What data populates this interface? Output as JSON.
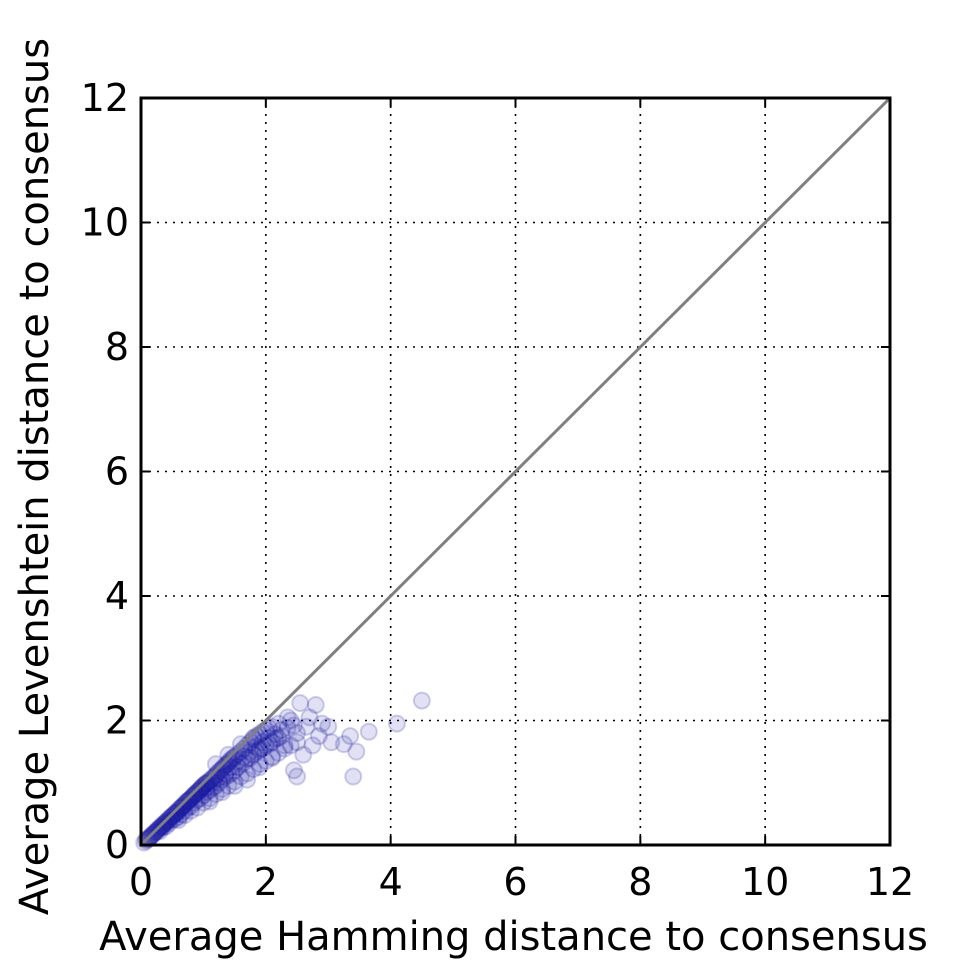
{
  "chart_data": {
    "type": "scatter",
    "title": "",
    "xlabel": "Average Hamming distance to consensus",
    "ylabel": "Average Levenshtein distance to consensus",
    "xlim": [
      0,
      12
    ],
    "ylim": [
      0,
      12
    ],
    "xticks": [
      0,
      2,
      4,
      6,
      8,
      10,
      12
    ],
    "yticks": [
      0,
      2,
      4,
      6,
      8,
      10,
      12
    ],
    "xtick_labels": [
      "0",
      "2",
      "4",
      "6",
      "8",
      "10",
      "12"
    ],
    "ytick_labels": [
      "0",
      "2",
      "4",
      "6",
      "8",
      "10",
      "12"
    ],
    "grid": true,
    "reference_line": {
      "from": [
        0,
        0
      ],
      "to": [
        12,
        12
      ],
      "color": "#808080"
    },
    "point_color": "#1a1aa6",
    "series": [
      {
        "points": [
          [
            0.05,
            0.04
          ],
          [
            0.08,
            0.07
          ],
          [
            0.1,
            0.09
          ],
          [
            0.12,
            0.1
          ],
          [
            0.14,
            0.12
          ],
          [
            0.15,
            0.13
          ],
          [
            0.17,
            0.15
          ],
          [
            0.18,
            0.16
          ],
          [
            0.2,
            0.18
          ],
          [
            0.22,
            0.2
          ],
          [
            0.24,
            0.21
          ],
          [
            0.25,
            0.22
          ],
          [
            0.27,
            0.25
          ],
          [
            0.28,
            0.26
          ],
          [
            0.3,
            0.27
          ],
          [
            0.32,
            0.3
          ],
          [
            0.33,
            0.3
          ],
          [
            0.35,
            0.32
          ],
          [
            0.37,
            0.34
          ],
          [
            0.38,
            0.35
          ],
          [
            0.4,
            0.37
          ],
          [
            0.42,
            0.38
          ],
          [
            0.43,
            0.4
          ],
          [
            0.45,
            0.41
          ],
          [
            0.47,
            0.44
          ],
          [
            0.48,
            0.45
          ],
          [
            0.5,
            0.46
          ],
          [
            0.52,
            0.48
          ],
          [
            0.54,
            0.5
          ],
          [
            0.55,
            0.51
          ],
          [
            0.57,
            0.52
          ],
          [
            0.58,
            0.54
          ],
          [
            0.6,
            0.55
          ],
          [
            0.62,
            0.58
          ],
          [
            0.64,
            0.6
          ],
          [
            0.65,
            0.6
          ],
          [
            0.67,
            0.62
          ],
          [
            0.68,
            0.64
          ],
          [
            0.7,
            0.65
          ],
          [
            0.72,
            0.68
          ],
          [
            0.74,
            0.7
          ],
          [
            0.75,
            0.7
          ],
          [
            0.77,
            0.72
          ],
          [
            0.78,
            0.73
          ],
          [
            0.8,
            0.75
          ],
          [
            0.82,
            0.77
          ],
          [
            0.84,
            0.79
          ],
          [
            0.85,
            0.8
          ],
          [
            0.87,
            0.82
          ],
          [
            0.88,
            0.83
          ],
          [
            0.9,
            0.85
          ],
          [
            0.92,
            0.87
          ],
          [
            0.94,
            0.88
          ],
          [
            0.95,
            0.9
          ],
          [
            0.97,
            0.92
          ],
          [
            0.98,
            0.93
          ],
          [
            1.0,
            0.95
          ],
          [
            1.02,
            0.97
          ],
          [
            1.04,
            0.98
          ],
          [
            1.05,
            1.0
          ],
          [
            1.07,
            1.0
          ],
          [
            1.1,
            1.03
          ],
          [
            1.12,
            1.05
          ],
          [
            1.15,
            1.08
          ],
          [
            1.18,
            1.1
          ],
          [
            1.2,
            1.12
          ],
          [
            1.22,
            1.15
          ],
          [
            1.25,
            1.18
          ],
          [
            1.28,
            1.2
          ],
          [
            1.3,
            1.22
          ],
          [
            1.32,
            1.25
          ],
          [
            1.35,
            1.28
          ],
          [
            1.38,
            1.3
          ],
          [
            1.4,
            1.32
          ],
          [
            1.42,
            1.35
          ],
          [
            1.45,
            1.38
          ],
          [
            1.48,
            1.4
          ],
          [
            1.5,
            1.42
          ],
          [
            1.55,
            1.46
          ],
          [
            1.6,
            1.5
          ],
          [
            1.65,
            1.55
          ],
          [
            1.7,
            1.6
          ],
          [
            1.75,
            1.65
          ],
          [
            1.8,
            1.7
          ],
          [
            1.85,
            1.75
          ],
          [
            1.9,
            1.78
          ],
          [
            1.95,
            1.82
          ],
          [
            2.0,
            1.85
          ],
          [
            2.05,
            1.88
          ],
          [
            2.1,
            1.9
          ],
          [
            0.3,
            0.22
          ],
          [
            0.35,
            0.28
          ],
          [
            0.4,
            0.3
          ],
          [
            0.45,
            0.35
          ],
          [
            0.5,
            0.4
          ],
          [
            0.55,
            0.42
          ],
          [
            0.6,
            0.45
          ],
          [
            0.65,
            0.5
          ],
          [
            0.7,
            0.55
          ],
          [
            0.75,
            0.6
          ],
          [
            0.8,
            0.62
          ],
          [
            0.85,
            0.68
          ],
          [
            0.9,
            0.72
          ],
          [
            0.95,
            0.75
          ],
          [
            1.0,
            0.8
          ],
          [
            1.05,
            0.85
          ],
          [
            1.1,
            0.88
          ],
          [
            1.15,
            0.92
          ],
          [
            1.2,
            0.95
          ],
          [
            1.25,
            1.0
          ],
          [
            1.3,
            1.05
          ],
          [
            1.35,
            1.1
          ],
          [
            1.4,
            1.12
          ],
          [
            1.45,
            1.15
          ],
          [
            1.5,
            1.2
          ],
          [
            1.55,
            1.25
          ],
          [
            1.6,
            1.3
          ],
          [
            1.65,
            1.32
          ],
          [
            1.7,
            1.38
          ],
          [
            1.75,
            1.4
          ],
          [
            1.8,
            1.45
          ],
          [
            1.85,
            1.5
          ],
          [
            1.9,
            1.52
          ],
          [
            1.95,
            1.55
          ],
          [
            2.0,
            1.6
          ],
          [
            2.05,
            1.62
          ],
          [
            2.1,
            1.65
          ],
          [
            2.15,
            1.7
          ],
          [
            2.2,
            1.72
          ],
          [
            2.25,
            1.75
          ],
          [
            0.6,
            0.4
          ],
          [
            0.7,
            0.48
          ],
          [
            0.8,
            0.55
          ],
          [
            0.9,
            0.6
          ],
          [
            1.0,
            0.68
          ],
          [
            1.1,
            0.75
          ],
          [
            1.2,
            0.82
          ],
          [
            1.3,
            0.9
          ],
          [
            1.4,
            0.95
          ],
          [
            1.5,
            1.02
          ],
          [
            1.6,
            1.1
          ],
          [
            1.7,
            1.15
          ],
          [
            1.8,
            1.22
          ],
          [
            1.9,
            1.3
          ],
          [
            2.0,
            1.35
          ],
          [
            2.1,
            1.42
          ],
          [
            2.2,
            1.48
          ],
          [
            2.3,
            1.55
          ],
          [
            2.4,
            1.6
          ],
          [
            2.5,
            1.65
          ],
          [
            1.05,
            0.92
          ],
          [
            1.15,
            1.0
          ],
          [
            1.25,
            1.08
          ],
          [
            1.35,
            1.15
          ],
          [
            1.45,
            1.25
          ],
          [
            1.55,
            1.35
          ],
          [
            1.65,
            1.42
          ],
          [
            1.75,
            1.5
          ],
          [
            1.85,
            1.58
          ],
          [
            1.95,
            1.65
          ],
          [
            2.05,
            1.72
          ],
          [
            2.15,
            1.78
          ],
          [
            2.25,
            1.85
          ],
          [
            2.35,
            1.88
          ],
          [
            2.45,
            1.92
          ],
          [
            1.2,
            1.3
          ],
          [
            1.4,
            1.45
          ],
          [
            1.6,
            1.62
          ],
          [
            1.8,
            1.72
          ],
          [
            1.9,
            1.55
          ],
          [
            2.2,
            1.95
          ],
          [
            2.4,
            2.0
          ],
          [
            2.5,
            1.8
          ],
          [
            2.3,
            1.6
          ],
          [
            2.1,
            1.4
          ],
          [
            1.9,
            1.25
          ],
          [
            1.7,
            1.05
          ],
          [
            1.5,
            0.95
          ],
          [
            1.3,
            0.85
          ],
          [
            1.1,
            0.7
          ],
          [
            2.55,
            2.28
          ],
          [
            2.8,
            2.25
          ],
          [
            2.9,
            1.95
          ],
          [
            3.0,
            1.9
          ],
          [
            2.75,
            1.6
          ],
          [
            2.6,
            1.45
          ],
          [
            2.45,
            1.2
          ],
          [
            2.65,
            1.9
          ],
          [
            2.85,
            1.75
          ],
          [
            3.05,
            1.65
          ],
          [
            3.25,
            1.62
          ],
          [
            3.35,
            1.75
          ],
          [
            3.45,
            1.5
          ],
          [
            3.65,
            1.82
          ],
          [
            4.1,
            1.95
          ],
          [
            4.5,
            2.32
          ],
          [
            3.4,
            1.1
          ],
          [
            2.5,
            1.1
          ],
          [
            2.7,
            2.05
          ],
          [
            2.35,
            2.05
          ]
        ]
      }
    ]
  }
}
